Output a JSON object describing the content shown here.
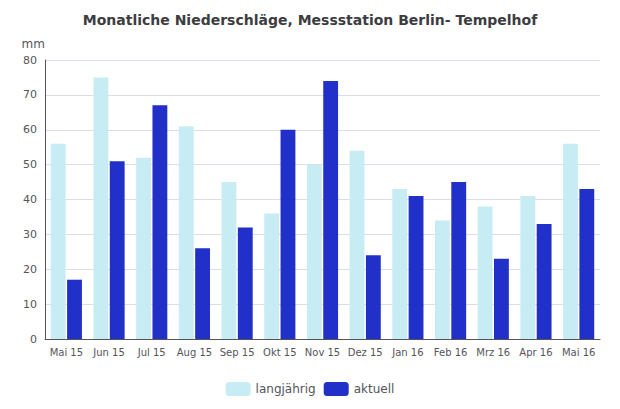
{
  "chart_data": {
    "type": "bar",
    "title": "Monatliche Niederschläge, Messstation Berlin- Tempelhof",
    "ylabel": "mm",
    "categories": [
      "Mai 15",
      "Jun 15",
      "Jul 15",
      "Aug 15",
      "Sep 15",
      "Okt 15",
      "Nov 15",
      "Dez 15",
      "Jan 16",
      "Feb 16",
      "Mrz 16",
      "Apr 16",
      "Mai 16"
    ],
    "series": [
      {
        "name": "langjährig",
        "color": "#c8ecf4",
        "values": [
          56,
          75,
          52,
          61,
          45,
          36,
          50,
          54,
          43,
          34,
          38,
          41,
          56
        ]
      },
      {
        "name": "aktuell",
        "color": "#2030c8",
        "values": [
          17,
          51,
          67,
          26,
          32,
          60,
          74,
          24,
          41,
          45,
          23,
          33,
          43
        ]
      }
    ],
    "ylim": [
      0,
      80
    ],
    "yticks": [
      0,
      10,
      20,
      30,
      40,
      50,
      60,
      70,
      80
    ],
    "grid": true,
    "legend": "bottom"
  }
}
